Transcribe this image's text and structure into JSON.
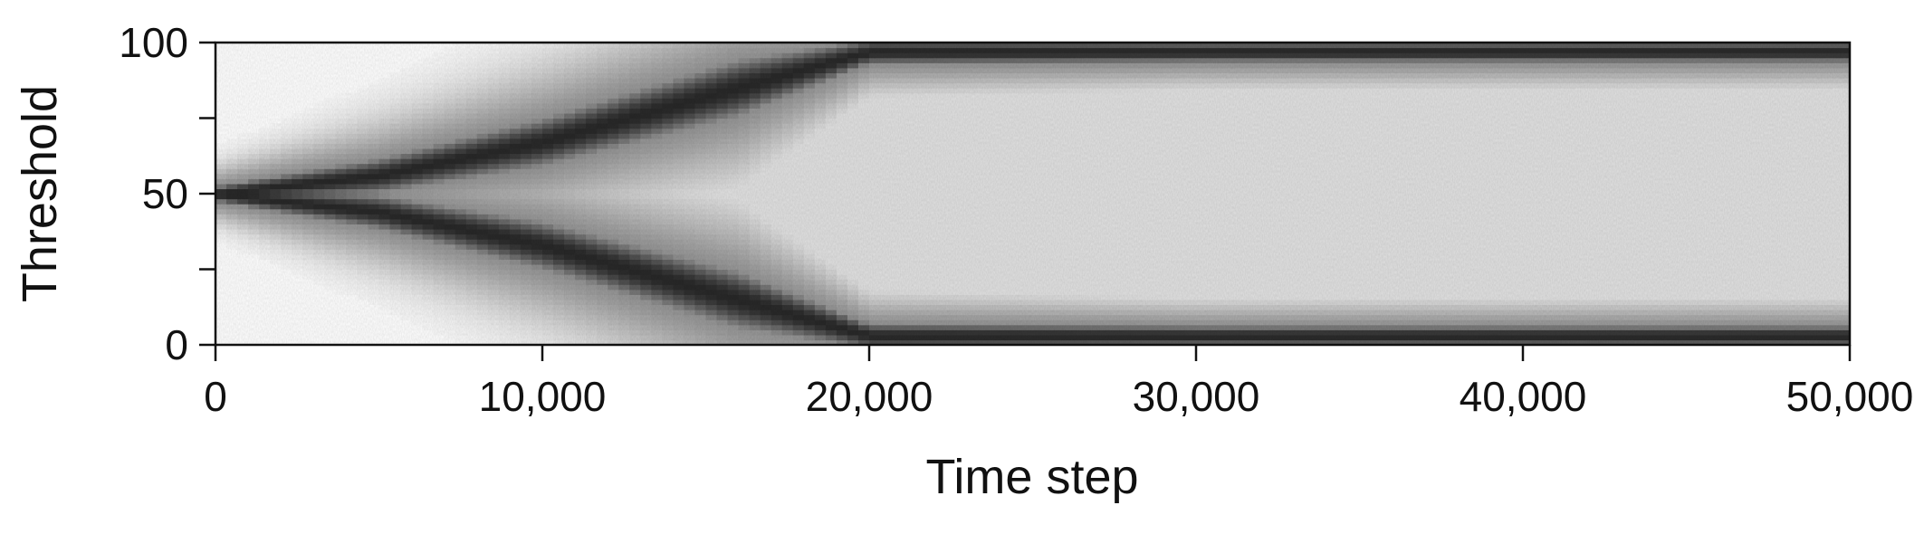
{
  "chart_data": {
    "type": "heatmap",
    "title": "",
    "xlabel": "Time step",
    "ylabel": "Threshold",
    "xlim": [
      0,
      50000
    ],
    "ylim": [
      0,
      100
    ],
    "xticks": [
      0,
      10000,
      20000,
      30000,
      40000,
      50000
    ],
    "xtick_labels": [
      "0",
      "10,000",
      "20,000",
      "30,000",
      "40,000",
      "50,000"
    ],
    "yticks_major": [
      0,
      50,
      100
    ],
    "ytick_labels": [
      "0",
      "50",
      "100"
    ],
    "yticks_minor": [
      25,
      75
    ],
    "colormap": "greys",
    "grid": false,
    "legend": "none",
    "density_description_points": [
      {
        "time": 0,
        "dark_bands_at": [
          50
        ],
        "band_halfwidth": 3
      },
      {
        "time": 5000,
        "dark_bands_at": [
          56,
          44
        ],
        "band_halfwidth": 7
      },
      {
        "time": 10000,
        "dark_bands_at": [
          67,
          33
        ],
        "band_halfwidth": 10
      },
      {
        "time": 16000,
        "dark_bands_at": [
          85,
          15
        ],
        "band_halfwidth": 12
      },
      {
        "time": 20000,
        "dark_bands_at": [
          97,
          3
        ],
        "band_halfwidth": 5
      },
      {
        "time": 30000,
        "dark_bands_at": [
          97,
          3
        ],
        "band_halfwidth": 4
      },
      {
        "time": 50000,
        "dark_bands_at": [
          97,
          3
        ],
        "band_halfwidth": 4
      }
    ]
  }
}
